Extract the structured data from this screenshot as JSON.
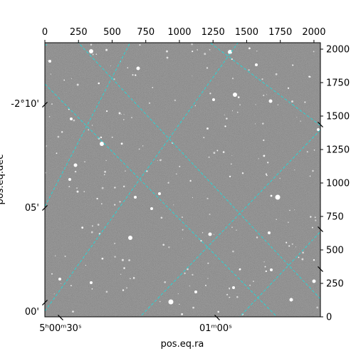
{
  "chart_data": {
    "type": "image",
    "xlabel": "pos.eq.ra",
    "ylabel": "pos.eq.dec",
    "pixel_axes": {
      "x": {
        "range": [
          0,
          2048
        ],
        "ticks": [
          0,
          250,
          500,
          750,
          1000,
          1250,
          1500,
          1750,
          2000
        ]
      },
      "y": {
        "range": [
          0,
          2048
        ],
        "ticks": [
          0,
          250,
          500,
          750,
          1000,
          1250,
          1500,
          1750,
          2000
        ]
      }
    },
    "world_ticks": {
      "ra": [
        "5ʰ00ᵐ30ˢ",
        "01ᵐ00ˢ"
      ],
      "dec": [
        "-2°10'",
        "05'",
        "00'"
      ]
    },
    "grid": true,
    "grid_color": "#2ad4d4",
    "background_color": "#6a6a6a"
  }
}
